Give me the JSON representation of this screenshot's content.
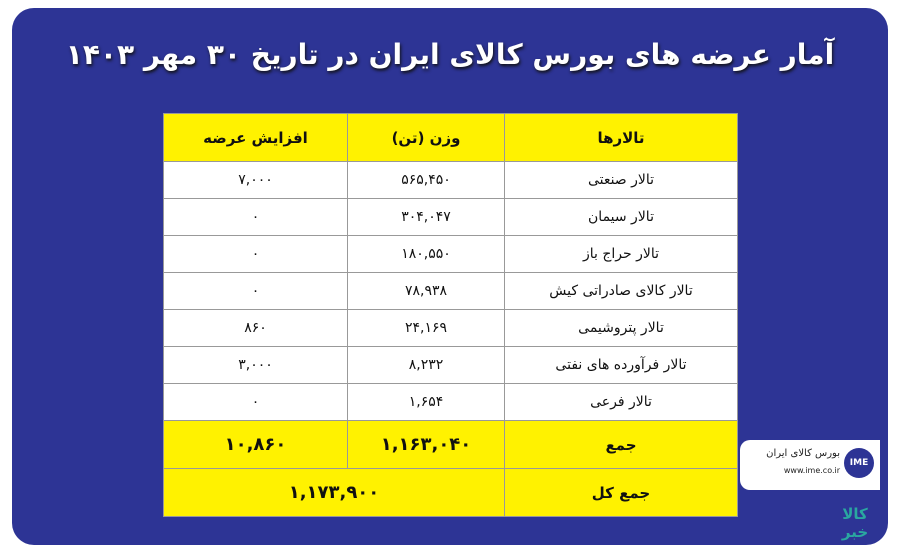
{
  "header": {
    "title": "آمار عرضه های بورس کالای ایران در تاریخ ۳۰ مهر ۱۴۰۳"
  },
  "table": {
    "columns": [
      "تالارها",
      "وزن (تن)",
      "افزایش عرضه"
    ],
    "rows": [
      [
        "تالار صنعتی",
        "۵۶۵,۴۵۰",
        "۷,۰۰۰"
      ],
      [
        "تالار سیمان",
        "۳۰۴,۰۴۷",
        "۰"
      ],
      [
        "تالار حراج باز",
        "۱۸۰,۵۵۰",
        "۰"
      ],
      [
        "تالار کالای صادراتی کیش",
        "۷۸,۹۳۸",
        "۰"
      ],
      [
        "تالار پتروشیمی",
        "۲۴,۱۶۹",
        "۸۶۰"
      ],
      [
        "تالار فرآورده های نفتی",
        "۸,۲۳۲",
        "۳,۰۰۰"
      ],
      [
        "تالار فرعی",
        "۱,۶۵۴",
        "۰"
      ]
    ],
    "total": [
      "جمع",
      "۱,۱۶۳,۰۴۰",
      "۱۰,۸۶۰"
    ],
    "grand_total": [
      "جمع کل",
      "۱,۱۷۳,۹۰۰"
    ]
  },
  "logo": {
    "name": "بورس کالای ایران",
    "url": "www.ime.co.ir",
    "mark": "IME"
  },
  "brand": {
    "top": "کالا",
    "bottom": "خبر"
  }
}
